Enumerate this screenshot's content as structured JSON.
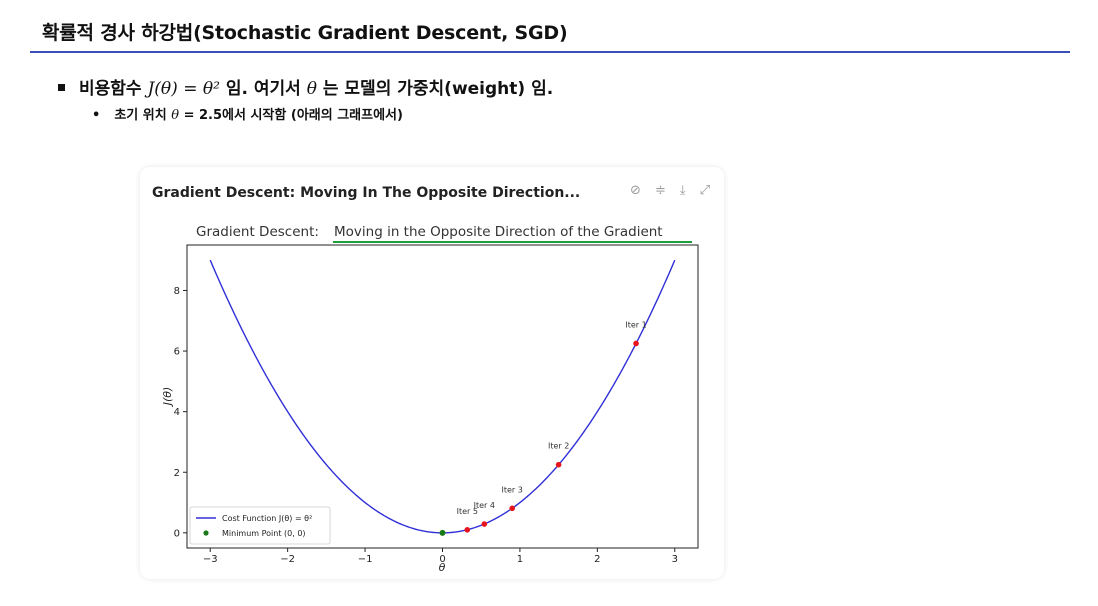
{
  "slide": {
    "title": "확률적 경사 하강법(Stochastic Gradient Descent, SGD)",
    "bullet1": {
      "pre": "비용함수 ",
      "math1": "J(θ) = θ²",
      "mid": " 임. 여기서 ",
      "math2": "θ",
      "post": " 는 모델의 가중치(weight) 임."
    },
    "bullet2": {
      "pre": "초기 위치 ",
      "math": "θ",
      "post": " = 2.5에서 시작함 (아래의 그래프에서)"
    }
  },
  "card": {
    "title": "Gradient Descent: Moving In The Opposite Direction...",
    "icons": [
      "pin-off-icon",
      "sliders-icon",
      "download-icon",
      "expand-icon"
    ]
  },
  "chart_data": {
    "type": "line",
    "title_plain": "Gradient Descent: ",
    "title_underlined": "Moving in the Opposite Direction of the Gradient",
    "xlabel": "θ",
    "ylabel": "J(θ)",
    "xlim": [
      -3.3,
      3.3
    ],
    "ylim": [
      -0.5,
      9.5
    ],
    "xticks": [
      "−3",
      "−2",
      "−1",
      "0",
      "1",
      "2",
      "3"
    ],
    "xtick_values": [
      -3,
      -2,
      -1,
      0,
      1,
      2,
      3
    ],
    "yticks": [
      "0",
      "2",
      "4",
      "6",
      "8"
    ],
    "ytick_values": [
      0,
      2,
      4,
      6,
      8
    ],
    "curve": {
      "name": "Cost Function J(θ) = θ²",
      "color": "#3030d8",
      "x_range": [
        -3,
        3
      ]
    },
    "iterations": [
      {
        "label": "Iter 1",
        "x": 2.5,
        "y": 6.25
      },
      {
        "label": "Iter 2",
        "x": 1.5,
        "y": 2.25
      },
      {
        "label": "Iter 3",
        "x": 0.9,
        "y": 0.81
      },
      {
        "label": "Iter 4",
        "x": 0.54,
        "y": 0.29
      },
      {
        "label": "Iter 5",
        "x": 0.32,
        "y": 0.1
      }
    ],
    "iter_color": "#e8141c",
    "minimum": {
      "name": "Minimum Point (0, 0)",
      "x": 0,
      "y": 0,
      "color": "#1a7a1a"
    },
    "legend": {
      "position": "lower-left"
    },
    "grid": false
  }
}
